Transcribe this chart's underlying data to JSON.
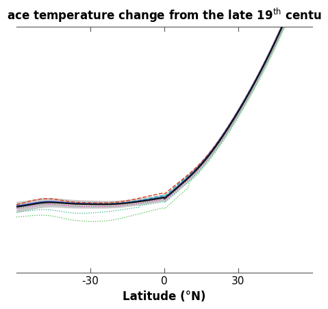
{
  "title": "ace temperature change from the late 19$^{\\mathrm{th}}$ centu",
  "xlabel": "Latitude (°N)",
  "xlim": [
    -60,
    60
  ],
  "xticks": [
    -30,
    0,
    30
  ],
  "ylim": [
    -0.35,
    1.5
  ],
  "bg_color": "#ffffff",
  "shade_color": "#bbbbbb",
  "shade_alpha": 0.8,
  "line_colors": {
    "main": "#111111",
    "blue": "#2244cc",
    "red_dash": "#dd4422",
    "cyan_dash": "#22aaaa",
    "magenta_dot": "#cc44aa",
    "teal_dot": "#22aa88",
    "green_dot": "#44bb44"
  }
}
